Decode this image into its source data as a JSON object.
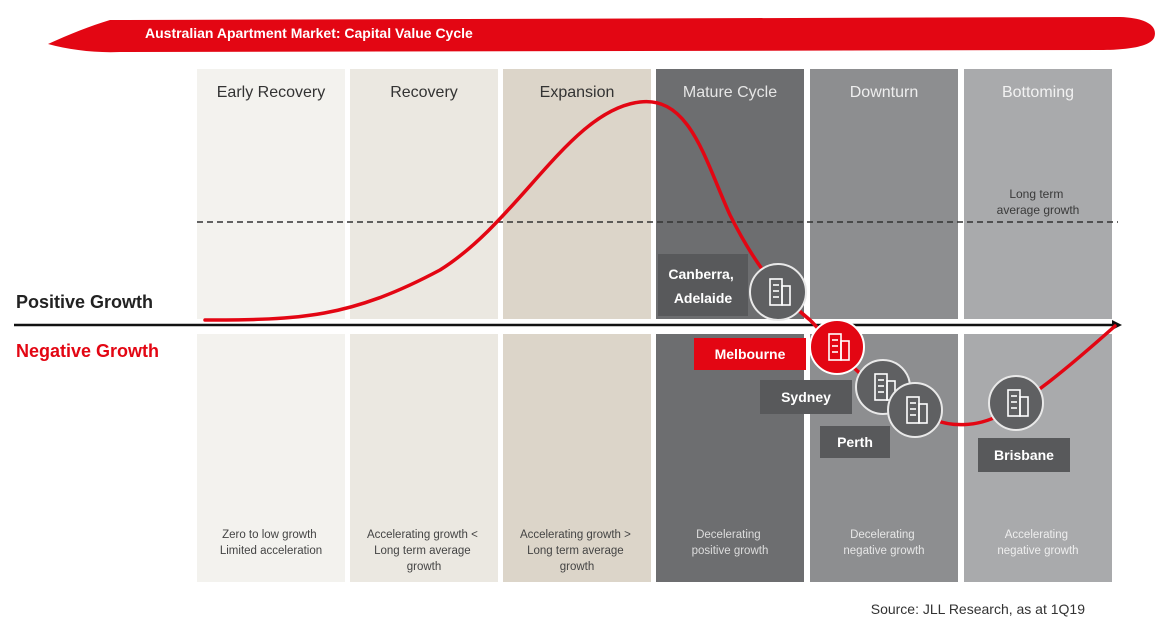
{
  "banner": {
    "title": "Australian Apartment Market: Capital Value Cycle",
    "color": "#e30613"
  },
  "phases": [
    {
      "label": "Early Recovery",
      "description": [
        "Zero to low growth",
        "Limited acceleration"
      ],
      "fill": "#f3f2ee",
      "label_color": "#333333",
      "desc_color": "#444444"
    },
    {
      "label": "Recovery",
      "description": [
        "Accelerating growth <",
        "Long term average",
        "growth"
      ],
      "fill": "#ebe8e1",
      "label_color": "#333333",
      "desc_color": "#444444"
    },
    {
      "label": "Expansion",
      "description": [
        "Accelerating growth >",
        "Long term average",
        "growth"
      ],
      "fill": "#dcd5c9",
      "label_color": "#333333",
      "desc_color": "#444444"
    },
    {
      "label": "Mature Cycle",
      "description": [
        "Decelerating",
        "positive growth"
      ],
      "fill": "#6d6e70",
      "label_color": "#e6e6e6",
      "desc_color": "#dddddd"
    },
    {
      "label": "Downturn",
      "description": [
        "Decelerating",
        "negative growth"
      ],
      "fill": "#8d8e90",
      "label_color": "#eeeeee",
      "desc_color": "#e6e6e6"
    },
    {
      "label": "Bottoming",
      "description": [
        "Accelerating",
        "negative growth"
      ],
      "fill": "#a9aaac",
      "label_color": "#f2f2f2",
      "desc_color": "#eeeeee"
    }
  ],
  "long_term_note": [
    "Long term",
    "average growth"
  ],
  "axis": {
    "positive_label": "Positive Growth",
    "negative_label": "Negative Growth",
    "positive_color": "#222222",
    "negative_color": "#e30613"
  },
  "cities": [
    {
      "name": [
        "Canberra,",
        "Adelaide"
      ],
      "highlight": false
    },
    {
      "name": [
        "Melbourne"
      ],
      "highlight": true
    },
    {
      "name": [
        "Sydney"
      ],
      "highlight": false
    },
    {
      "name": [
        "Perth"
      ],
      "highlight": false
    },
    {
      "name": [
        "Brisbane"
      ],
      "highlight": false
    }
  ],
  "colors": {
    "curve": "#e30613",
    "city_box": "#58595b",
    "city_circle": "#5f6062"
  },
  "source": "Source: JLL Research, as at 1Q19"
}
